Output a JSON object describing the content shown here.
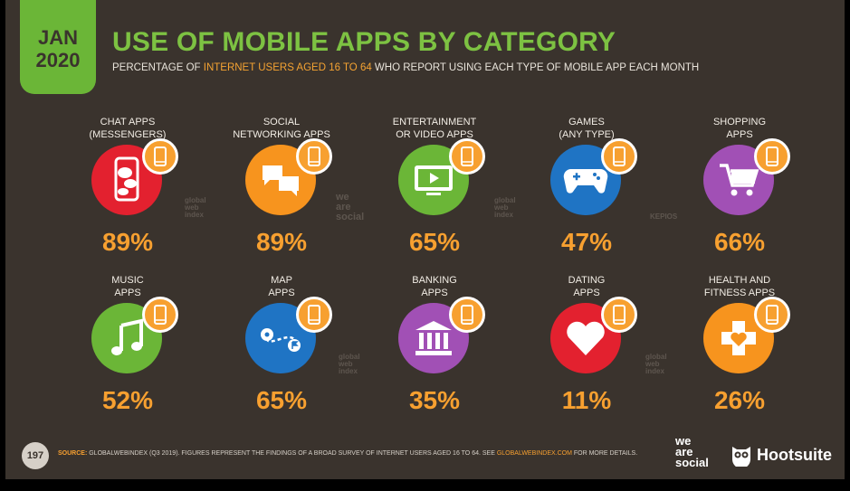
{
  "header": {
    "date_month": "JAN",
    "date_year": "2020",
    "title": "USE OF MOBILE APPS BY CATEGORY",
    "subtitle_pre": "PERCENTAGE OF ",
    "subtitle_highlight": "INTERNET USERS AGED 16 TO 64",
    "subtitle_post": " WHO REPORT USING EACH TYPE OF MOBILE APP EACH MONTH"
  },
  "categories": [
    {
      "label": "CHAT APPS\n(MESSENGERS)",
      "value": "89%",
      "color": "#e3212f",
      "icon": "chat-phone-icon"
    },
    {
      "label": "SOCIAL\nNETWORKING APPS",
      "value": "89%",
      "color": "#f7941e",
      "icon": "speech-bubbles-icon"
    },
    {
      "label": "ENTERTAINMENT\nOR VIDEO APPS",
      "value": "65%",
      "color": "#6bb637",
      "icon": "video-play-icon"
    },
    {
      "label": "GAMES\n(ANY TYPE)",
      "value": "47%",
      "color": "#1f74c4",
      "icon": "gamepad-icon"
    },
    {
      "label": "SHOPPING\nAPPS",
      "value": "66%",
      "color": "#a150b5",
      "icon": "shopping-cart-icon"
    },
    {
      "label": "MUSIC\nAPPS",
      "value": "52%",
      "color": "#6bb637",
      "icon": "music-note-icon"
    },
    {
      "label": "MAP\nAPPS",
      "value": "65%",
      "color": "#1f74c4",
      "icon": "map-route-icon"
    },
    {
      "label": "BANKING\nAPPS",
      "value": "35%",
      "color": "#a150b5",
      "icon": "bank-icon"
    },
    {
      "label": "DATING\nAPPS",
      "value": "11%",
      "color": "#e3212f",
      "icon": "heart-icon"
    },
    {
      "label": "HEALTH AND\nFITNESS APPS",
      "value": "26%",
      "color": "#f7941e",
      "icon": "health-cross-icon"
    }
  ],
  "watermarks": {
    "globalwebindex": "global\nweb\nindex",
    "wearesocial": "we\nare\nsocial",
    "kepios": "KEPIOS"
  },
  "footer": {
    "page_number": "197",
    "source_label": "SOURCE:",
    "source_text": " GLOBALWEBINDEX (Q3 2019). FIGURES REPRESENT THE FINDINGS OF A BROAD SURVEY OF INTERNET USERS AGED 16 TO 64. SEE ",
    "source_link": "GLOBALWEBINDEX.COM",
    "source_tail": " FOR MORE DETAILS.",
    "brand_1": "we\nare\nsocial",
    "brand_2": "Hootsuite"
  }
}
